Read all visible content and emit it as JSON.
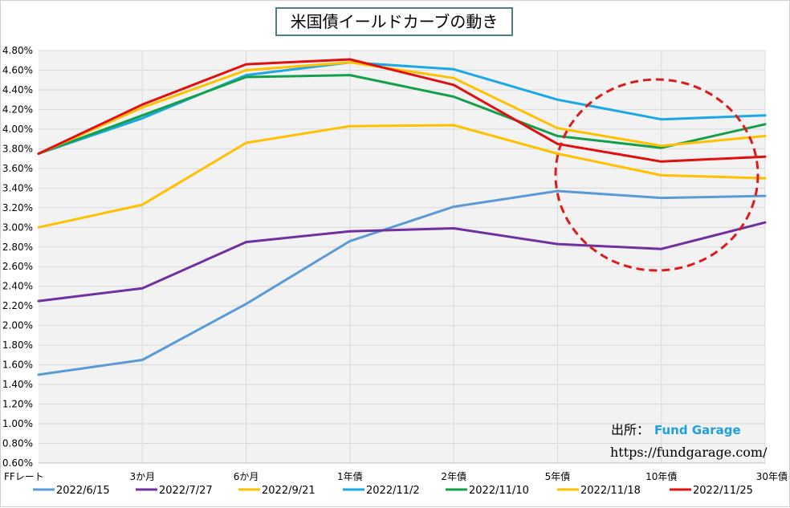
{
  "chart_data": {
    "type": "line",
    "title": "米国債イールドカーブの動き",
    "categories": [
      "FFレート",
      "3か月",
      "6か月",
      "1年債",
      "2年債",
      "5年債",
      "10年債",
      "30年債"
    ],
    "y_ticks": [
      "0.60%",
      "0.80%",
      "1.00%",
      "1.20%",
      "1.40%",
      "1.60%",
      "1.80%",
      "2.00%",
      "2.20%",
      "2.40%",
      "2.60%",
      "2.80%",
      "3.00%",
      "3.20%",
      "3.40%",
      "3.60%",
      "3.80%",
      "4.00%",
      "4.20%",
      "4.40%",
      "4.60%",
      "4.80%"
    ],
    "ylim": [
      0.6,
      4.8
    ],
    "grid": true,
    "legend_position": "bottom",
    "series": [
      {
        "name": "2022/6/15",
        "color": "#5b9bd5",
        "values": [
          1.5,
          1.65,
          2.22,
          2.86,
          3.21,
          3.37,
          3.3,
          3.32
        ]
      },
      {
        "name": "2022/7/27",
        "color": "#7030a0",
        "values": [
          2.25,
          2.38,
          2.85,
          2.96,
          2.99,
          2.83,
          2.78,
          3.05
        ]
      },
      {
        "name": "2022/9/21",
        "color": "#ffc000",
        "values": [
          3.0,
          3.23,
          3.86,
          4.03,
          4.04,
          3.75,
          3.53,
          3.5
        ]
      },
      {
        "name": "2022/11/2",
        "color": "#1ca7e6",
        "values": [
          3.75,
          4.11,
          4.55,
          4.68,
          4.61,
          4.3,
          4.1,
          4.14
        ]
      },
      {
        "name": "2022/11/10",
        "color": "#14a04a",
        "values": [
          3.75,
          4.14,
          4.53,
          4.55,
          4.33,
          3.93,
          3.81,
          4.05
        ]
      },
      {
        "name": "2022/11/18",
        "color": "#ffc000",
        "values": [
          3.75,
          4.22,
          4.6,
          4.68,
          4.52,
          4.01,
          3.83,
          3.93
        ]
      },
      {
        "name": "2022/11/25",
        "color": "#e01010",
        "values": [
          3.75,
          4.25,
          4.66,
          4.71,
          4.45,
          3.85,
          3.67,
          3.72
        ]
      }
    ],
    "annotation": {
      "shape": "dashed-circle",
      "color": "#dc1c1c",
      "around": "10年債"
    }
  },
  "source": {
    "label": "出所：",
    "name": "Fund Garage",
    "url": "https://fundgarage.com/"
  }
}
